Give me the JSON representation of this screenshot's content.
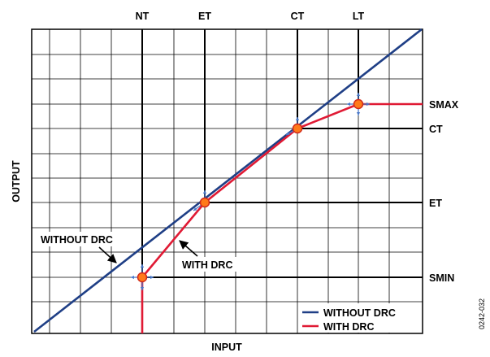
{
  "figure": {
    "top_labels": {
      "nt": "NT",
      "et": "ET",
      "ct": "CT",
      "lt": "LT"
    },
    "right_labels": {
      "smax": "SMAX",
      "ct": "CT",
      "et": "ET",
      "smin": "SMIN"
    },
    "x_axis_label": "INPUT",
    "y_axis_label": "OUTPUT",
    "annotations": {
      "without_drc": "WITHOUT DRC",
      "with_drc": "WITH DRC"
    },
    "legend": [
      {
        "label": "WITHOUT DRC",
        "color": "#1f3f86"
      },
      {
        "label": "WITH DRC",
        "color": "#e01a34"
      }
    ],
    "figure_id": "0242-032"
  },
  "colors": {
    "without_drc": "#1f3f86",
    "with_drc": "#e01a34",
    "knee_fill": "#ff7a1a",
    "knee_stroke": "#d22a1a",
    "grid": "#000000",
    "arrow": "#4a78c8"
  }
}
